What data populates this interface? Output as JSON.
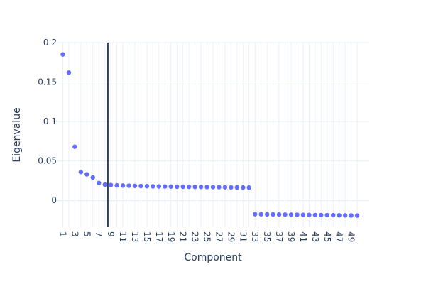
{
  "chart_data": {
    "type": "scatter",
    "title": "",
    "xlabel": "Component",
    "ylabel": "Eigenvalue",
    "x": [
      1,
      2,
      3,
      4,
      5,
      6,
      7,
      8,
      9,
      10,
      11,
      12,
      13,
      14,
      15,
      16,
      17,
      18,
      19,
      20,
      21,
      22,
      23,
      24,
      25,
      26,
      27,
      28,
      29,
      30,
      31,
      32,
      33,
      34,
      35,
      36,
      37,
      38,
      39,
      40,
      41,
      42,
      43,
      44,
      45,
      46,
      47,
      48,
      49,
      50
    ],
    "series": [
      {
        "color": "#636efa",
        "values": [
          0.185,
          0.162,
          0.068,
          0.036,
          0.033,
          0.029,
          0.022,
          0.02,
          0.0195,
          0.019,
          0.0188,
          0.0186,
          0.0184,
          0.0182,
          0.018,
          0.0178,
          0.0177,
          0.0176,
          0.0175,
          0.0174,
          0.0173,
          0.0172,
          0.0171,
          0.017,
          0.0169,
          0.0168,
          0.0167,
          0.0166,
          0.0165,
          0.0164,
          0.0163,
          0.0162,
          -0.0175,
          -0.0176,
          -0.0177,
          -0.0178,
          -0.0179,
          -0.018,
          -0.0181,
          -0.0182,
          -0.0183,
          -0.0184,
          -0.0185,
          -0.0186,
          -0.0187,
          -0.0188,
          -0.0189,
          -0.019,
          -0.0191,
          -0.0192
        ]
      }
    ],
    "xticks": [
      "1",
      "3",
      "5",
      "7",
      "9",
      "11",
      "13",
      "15",
      "17",
      "19",
      "21",
      "23",
      "25",
      "27",
      "29",
      "31",
      "33",
      "35",
      "37",
      "39",
      "41",
      "43",
      "45",
      "47",
      "49"
    ],
    "yticks": [
      "0.2",
      "0.15",
      "0.1",
      "0.05",
      "0"
    ],
    "ytick_values": [
      0.2,
      0.15,
      0.1,
      0.05,
      0
    ],
    "xlim": [
      0,
      52
    ],
    "ylim": [
      -0.034,
      0.2
    ],
    "vline_x": 8.5,
    "vline_color": "#2a3f5f",
    "grid": true,
    "grid_color": "#ebf0f8",
    "zero_line_color": "#ebf0f8",
    "text_color": "#2a3f5f"
  }
}
